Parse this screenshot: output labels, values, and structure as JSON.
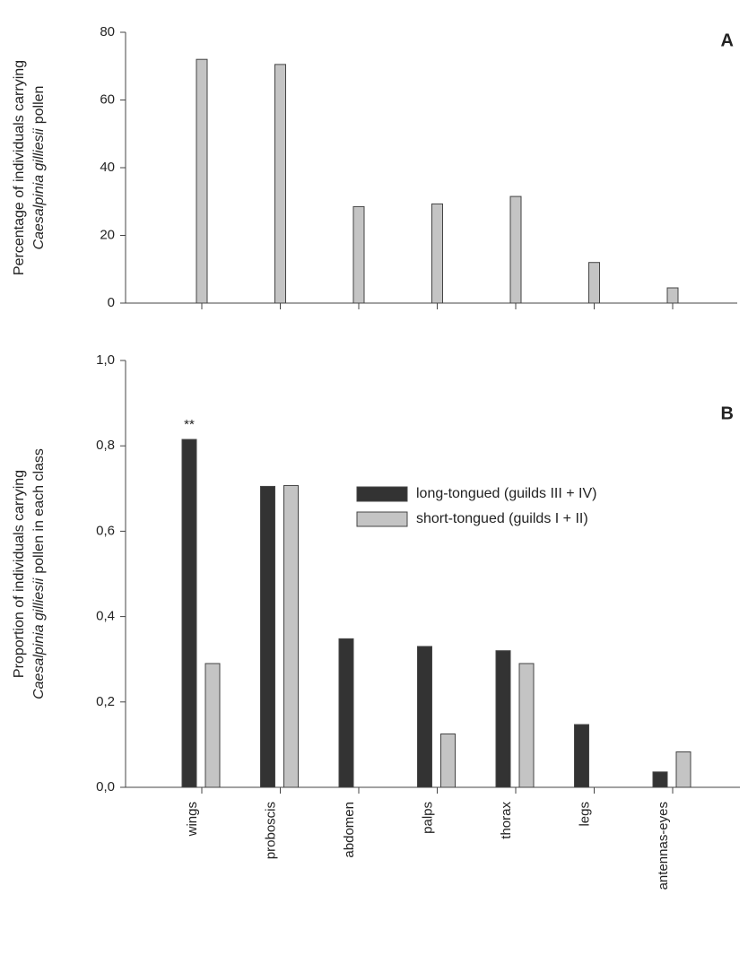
{
  "chart_data": [
    {
      "type": "bar",
      "panel_label": "A",
      "ylabel": {
        "line1": "Percentage of individuals carrying",
        "line2_italic": "Caesalpinia gilliesii",
        "line2": "pollen"
      },
      "categories": [
        null,
        null,
        null,
        null,
        null,
        null,
        null
      ],
      "series": [
        {
          "name": null,
          "color": "#c4c4c4",
          "values": [
            72,
            70.5,
            28.5,
            29.3,
            31.5,
            12,
            4.5
          ]
        }
      ],
      "ylim": [
        0,
        80
      ],
      "yticks": [
        0,
        20,
        40,
        60,
        80
      ]
    },
    {
      "type": "bar",
      "panel_label": "B",
      "ylabel": {
        "line1": "Proportion of individuals carrying",
        "line2_italic": "Caesalpinia gilliesii",
        "line2": "pollen in each class"
      },
      "categories": [
        "wings",
        "proboscis",
        "abdomen",
        "palps",
        "thorax",
        "legs",
        "antennas-eyes"
      ],
      "series": [
        {
          "name": "long-tongued (guilds III + IV)",
          "color": "#333333",
          "values": [
            0.815,
            0.705,
            0.348,
            0.33,
            0.32,
            0.147,
            0.036
          ]
        },
        {
          "name": "short-tongued (guilds I + II)",
          "color": "#c4c4c4",
          "values": [
            0.29,
            0.707,
            0,
            0.125,
            0.29,
            0,
            0.083
          ]
        }
      ],
      "annotations": [
        {
          "text": "**"
        }
      ],
      "ylim": [
        0,
        1.0
      ],
      "yticks": [
        {
          "value": 0,
          "label": "0,0"
        },
        {
          "value": 0.2,
          "label": "0,2"
        },
        {
          "value": 0.4,
          "label": "0,4"
        },
        {
          "value": 0.6,
          "label": "0,6"
        },
        {
          "value": 0.8,
          "label": "0,8"
        },
        {
          "value": 1.0,
          "label": "1,0"
        }
      ],
      "legend": "upper right"
    }
  ]
}
